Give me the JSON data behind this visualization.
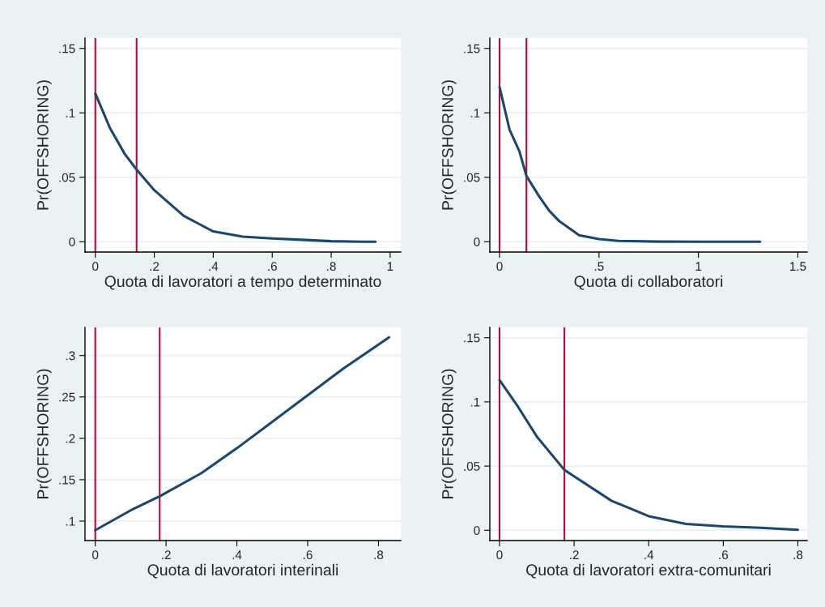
{
  "chart_data": [
    {
      "type": "line",
      "xlabel": "Quota di lavoratori a tempo determinato",
      "ylabel": "Pr(OFFSHORING)",
      "grid": "y",
      "x": [
        0,
        0.05,
        0.1,
        0.14,
        0.2,
        0.3,
        0.35,
        0.4,
        0.5,
        0.6,
        0.7,
        0.8,
        0.9,
        0.95
      ],
      "series": [
        {
          "color": "#1a476f",
          "values": [
            0.115,
            0.088,
            0.068,
            0.056,
            0.04,
            0.02,
            0.014,
            0.008,
            0.004,
            0.0025,
            0.0015,
            0.0004,
            0,
            0
          ]
        }
      ],
      "xlim": [
        -0.035,
        1.036
      ],
      "ylim": [
        -0.008,
        0.158
      ],
      "xticks": [
        0,
        {
          "value": 0.2,
          "label": ".2"
        },
        {
          "value": 0.4,
          "label": ".4"
        },
        {
          "value": 0.6,
          "label": ".6"
        },
        {
          "value": 0.8,
          "label": ".8"
        },
        1
      ],
      "yticks": [
        0,
        {
          "value": 0.05,
          "label": ".05"
        },
        {
          "value": 0.1,
          "label": ".1"
        },
        {
          "value": 0.15,
          "label": ".15"
        }
      ],
      "ref_lines": [
        {
          "axis": "x",
          "value": 0,
          "color": "#c10534"
        },
        {
          "axis": "x",
          "value": 0.14,
          "color": "#c10534"
        }
      ]
    },
    {
      "type": "line",
      "xlabel": "Quota di collaboratori",
      "ylabel": "Pr(OFFSHORING)",
      "grid": "y",
      "x": [
        0,
        0.05,
        0.1,
        0.135,
        0.2,
        0.25,
        0.3,
        0.4,
        0.5,
        0.6,
        0.8,
        1.0,
        1.31
      ],
      "series": [
        {
          "color": "#1a476f",
          "values": [
            0.12,
            0.087,
            0.07,
            0.051,
            0.035,
            0.024,
            0.016,
            0.005,
            0.002,
            0.0006,
            0.0001,
            0,
            0
          ]
        }
      ],
      "xlim": [
        -0.049,
        1.547
      ],
      "ylim": [
        -0.008,
        0.158
      ],
      "xticks": [
        0,
        {
          "value": 0.5,
          "label": ".5"
        },
        1,
        1.5
      ],
      "yticks": [
        0,
        {
          "value": 0.05,
          "label": ".05"
        },
        {
          "value": 0.1,
          "label": ".1"
        },
        {
          "value": 0.15,
          "label": ".15"
        }
      ],
      "ref_lines": [
        {
          "axis": "x",
          "value": 0,
          "color": "#c10534"
        },
        {
          "axis": "x",
          "value": 0.135,
          "color": "#c10534"
        }
      ]
    },
    {
      "type": "line",
      "xlabel": "Quota di lavoratori interinali",
      "ylabel": "Pr(OFFSHORING)",
      "grid": "y",
      "x": [
        0,
        0.1,
        0.182,
        0.3,
        0.4,
        0.5,
        0.6,
        0.7,
        0.83
      ],
      "series": [
        {
          "color": "#1a476f",
          "values": [
            0.089,
            0.113,
            0.13,
            0.158,
            0.188,
            0.22,
            0.252,
            0.284,
            0.322
          ]
        }
      ],
      "xlim": [
        -0.029,
        0.863
      ],
      "ylim": [
        0.0765,
        0.334
      ],
      "xticks": [
        0,
        {
          "value": 0.2,
          "label": ".2"
        },
        {
          "value": 0.4,
          "label": ".4"
        },
        {
          "value": 0.6,
          "label": ".6"
        },
        {
          "value": 0.8,
          "label": ".8"
        }
      ],
      "yticks": [
        {
          "value": 0.1,
          "label": ".1"
        },
        {
          "value": 0.15,
          "label": ".15"
        },
        {
          "value": 0.2,
          "label": ".2"
        },
        {
          "value": 0.25,
          "label": ".25"
        },
        {
          "value": 0.3,
          "label": ".3"
        }
      ],
      "ref_lines": [
        {
          "axis": "x",
          "value": 0,
          "color": "#c10534"
        },
        {
          "axis": "x",
          "value": 0.182,
          "color": "#c10534"
        }
      ]
    },
    {
      "type": "line",
      "xlabel": "Quota di lavoratori extra-comunitari",
      "ylabel": "Pr(OFFSHORING)",
      "grid": "y",
      "x": [
        0,
        0.05,
        0.1,
        0.174,
        0.2,
        0.3,
        0.4,
        0.5,
        0.6,
        0.7,
        0.8
      ],
      "series": [
        {
          "color": "#1a476f",
          "values": [
            0.117,
            0.096,
            0.073,
            0.047,
            0.042,
            0.023,
            0.011,
            0.005,
            0.003,
            0.002,
            0.0004
          ]
        }
      ],
      "xlim": [
        -0.026,
        0.825
      ],
      "ylim": [
        -0.008,
        0.158
      ],
      "xticks": [
        0,
        {
          "value": 0.2,
          "label": ".2"
        },
        {
          "value": 0.4,
          "label": ".4"
        },
        {
          "value": 0.6,
          "label": ".6"
        },
        {
          "value": 0.8,
          "label": ".8"
        }
      ],
      "yticks": [
        0,
        {
          "value": 0.05,
          "label": ".05"
        },
        {
          "value": 0.1,
          "label": ".1"
        },
        {
          "value": 0.15,
          "label": ".15"
        }
      ],
      "ref_lines": [
        {
          "axis": "x",
          "value": 0,
          "color": "#c10534"
        },
        {
          "axis": "x",
          "value": 0.174,
          "color": "#c10534"
        }
      ]
    }
  ]
}
